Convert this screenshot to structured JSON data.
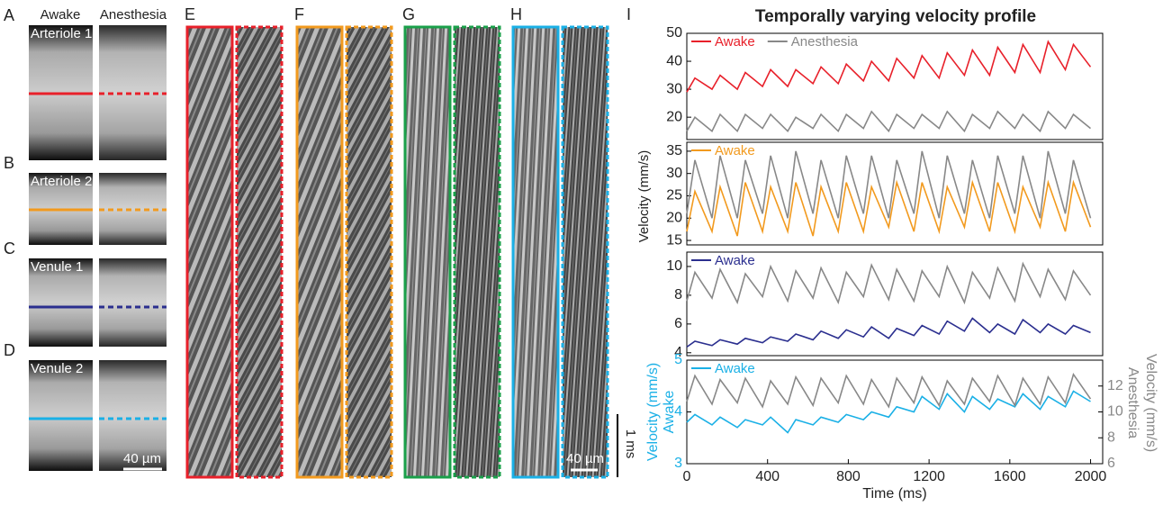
{
  "figure": {
    "column_headers": [
      "Awake",
      "Anesthesia"
    ],
    "image_panels": [
      {
        "letter": "A",
        "label": "Arteriole 1"
      },
      {
        "letter": "B",
        "label": "Arteriole 2"
      },
      {
        "letter": "C",
        "label": "Venule 1"
      },
      {
        "letter": "D",
        "label": "Venule 2"
      }
    ],
    "image_scale": "40 µm",
    "kymograph_letters": [
      "E",
      "F",
      "G",
      "H"
    ],
    "time_scale": "1 ms",
    "kymograph_scale": "40 µm",
    "chart_letter": "I"
  },
  "title": "Temporally varying velocity profile",
  "ylabel": "Velocity (mm/s)",
  "chart_data": [
    {
      "type": "line",
      "xlim": [
        0,
        2060
      ],
      "ylim": [
        12,
        50
      ],
      "yticks": [
        20,
        30,
        40,
        50
      ],
      "x": [
        0,
        40,
        125,
        165,
        250,
        290,
        375,
        415,
        500,
        540,
        625,
        665,
        750,
        790,
        875,
        915,
        1000,
        1040,
        1125,
        1165,
        1250,
        1290,
        1375,
        1415,
        1500,
        1540,
        1625,
        1665,
        1750,
        1790,
        1875,
        1915,
        2000
      ],
      "series": [
        {
          "name": "Awake",
          "color": "#e8202a",
          "values": [
            29,
            34,
            30,
            35,
            30,
            36,
            31,
            37,
            31,
            37,
            32,
            38,
            32,
            39,
            33,
            40,
            33,
            41,
            34,
            42,
            34,
            43,
            35,
            44,
            35,
            45,
            36,
            46,
            36,
            47,
            37,
            46,
            38
          ]
        },
        {
          "name": "Anesthesia",
          "color": "#888888",
          "values": [
            15,
            20,
            15,
            21,
            15,
            21,
            16,
            21,
            15,
            20,
            16,
            21,
            15,
            21,
            16,
            22,
            15,
            21,
            16,
            21,
            16,
            22,
            15,
            21,
            16,
            22,
            16,
            21,
            15,
            22,
            16,
            21,
            16
          ]
        }
      ]
    },
    {
      "type": "line",
      "xlim": [
        0,
        2060
      ],
      "ylim": [
        14,
        37
      ],
      "yticks": [
        15,
        20,
        25,
        30,
        35
      ],
      "x": [
        0,
        40,
        125,
        165,
        250,
        290,
        375,
        415,
        500,
        540,
        625,
        665,
        750,
        790,
        875,
        915,
        1000,
        1040,
        1125,
        1165,
        1250,
        1290,
        1375,
        1415,
        1500,
        1540,
        1625,
        1665,
        1750,
        1790,
        1875,
        1915,
        2000
      ],
      "series": [
        {
          "name": "Awake",
          "color": "#f29a1e",
          "values": [
            17,
            26,
            17,
            27,
            16,
            28,
            17,
            27,
            17,
            28,
            16,
            27,
            17,
            28,
            17,
            27,
            18,
            28,
            17,
            28,
            17,
            27,
            18,
            28,
            17,
            28,
            17,
            27,
            18,
            28,
            17,
            28,
            18
          ]
        },
        {
          "color": "#888888",
          "values": [
            21,
            33,
            20,
            34,
            20,
            33,
            21,
            34,
            20,
            35,
            21,
            33,
            20,
            34,
            21,
            34,
            20,
            33,
            21,
            35,
            20,
            34,
            21,
            33,
            20,
            34,
            21,
            34,
            20,
            35,
            21,
            33,
            20
          ]
        }
      ]
    },
    {
      "type": "line",
      "xlim": [
        0,
        2060
      ],
      "ylim": [
        3.8,
        11
      ],
      "yticks": [
        4,
        6,
        8,
        10
      ],
      "x": [
        0,
        40,
        125,
        165,
        250,
        290,
        375,
        415,
        500,
        540,
        625,
        665,
        750,
        790,
        875,
        915,
        1000,
        1040,
        1125,
        1165,
        1250,
        1290,
        1375,
        1415,
        1500,
        1540,
        1625,
        1665,
        1750,
        1790,
        1875,
        1915,
        2000
      ],
      "series": [
        {
          "name": "Awake",
          "color": "#2b2f8f",
          "values": [
            4.4,
            4.8,
            4.5,
            4.9,
            4.6,
            5.0,
            4.7,
            5.1,
            4.8,
            5.3,
            4.9,
            5.5,
            5.0,
            5.6,
            5.1,
            5.8,
            5.0,
            5.7,
            5.2,
            5.9,
            5.3,
            6.2,
            5.5,
            6.4,
            5.4,
            6.0,
            5.3,
            6.3,
            5.4,
            6.0,
            5.3,
            5.9,
            5.4
          ]
        },
        {
          "color": "#888888",
          "values": [
            7.6,
            9.6,
            7.8,
            9.8,
            7.5,
            9.5,
            7.9,
            10.0,
            7.6,
            9.7,
            7.8,
            9.9,
            7.5,
            9.6,
            7.9,
            10.1,
            7.7,
            9.8,
            7.6,
            9.7,
            7.9,
            10.0,
            7.5,
            9.6,
            7.8,
            9.9,
            7.6,
            10.2,
            7.9,
            9.8,
            7.7,
            9.7,
            8.0
          ]
        }
      ]
    },
    {
      "type": "line",
      "xlim": [
        0,
        2060
      ],
      "ylim": [
        3,
        5
      ],
      "yticks": [
        3,
        4,
        5
      ],
      "ycolor": "#1ab0e6",
      "y2lim": [
        6,
        14
      ],
      "y2ticks": [
        6,
        8,
        10,
        12
      ],
      "y2color": "#888888",
      "ylabel": "Velocity (mm/s)",
      "ylabel_group": "Awake",
      "y2label": "Velocity (mm/s)",
      "y2label_group": "Anesthesia",
      "xlabel": "Time (ms)",
      "xticks": [
        0,
        400,
        800,
        1200,
        1600,
        2000
      ],
      "x": [
        0,
        40,
        125,
        165,
        250,
        290,
        375,
        415,
        500,
        540,
        625,
        665,
        750,
        790,
        875,
        915,
        1000,
        1040,
        1125,
        1165,
        1250,
        1290,
        1375,
        1415,
        1500,
        1540,
        1625,
        1665,
        1750,
        1790,
        1875,
        1915,
        2000
      ],
      "series": [
        {
          "name": "Awake",
          "color": "#1ab0e6",
          "values": [
            3.8,
            3.95,
            3.75,
            3.9,
            3.7,
            3.85,
            3.75,
            3.9,
            3.6,
            3.85,
            3.75,
            3.9,
            3.8,
            3.95,
            3.85,
            4.0,
            3.9,
            4.1,
            4.0,
            4.3,
            4.05,
            4.35,
            4.0,
            4.3,
            4.05,
            4.25,
            4.1,
            4.35,
            4.05,
            4.3,
            4.1,
            4.4,
            4.2
          ]
        },
        {
          "axis": "y2",
          "color": "#888888",
          "values": [
            10.8,
            12.8,
            10.6,
            12.5,
            10.7,
            12.6,
            10.4,
            12.4,
            10.6,
            12.7,
            10.5,
            12.6,
            10.7,
            12.8,
            10.6,
            12.5,
            10.4,
            12.6,
            10.7,
            12.7,
            10.5,
            12.4,
            10.6,
            12.6,
            10.8,
            12.8,
            10.5,
            12.6,
            10.6,
            12.7,
            10.7,
            12.9,
            11.0
          ]
        }
      ]
    }
  ]
}
